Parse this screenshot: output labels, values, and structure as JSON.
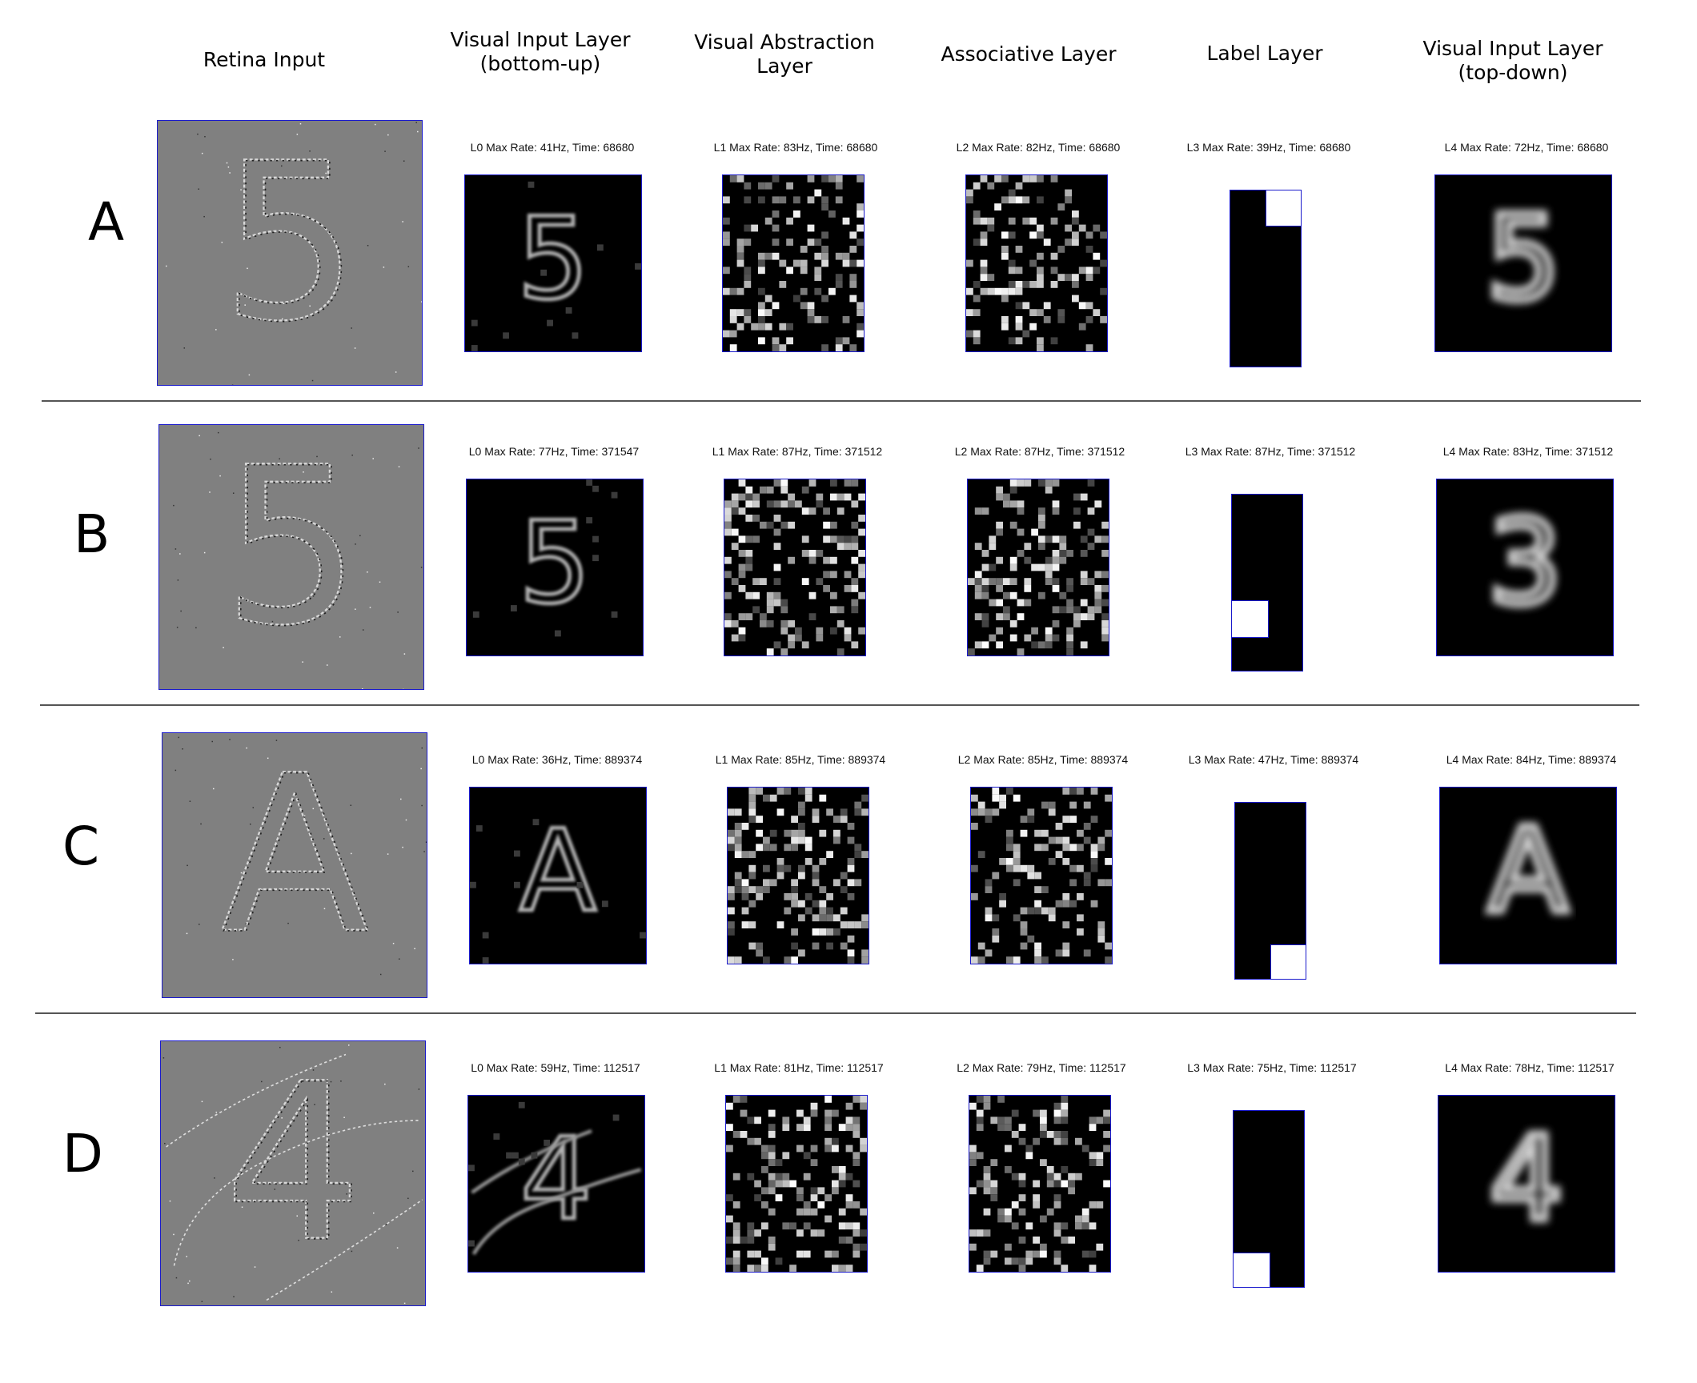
{
  "columns": {
    "retina": "Retina Input",
    "vis_bu": "Visual Input Layer\n(bottom-up)",
    "vis_abs": "Visual Abstraction\nLayer",
    "assoc": "Associative Layer",
    "label": "Label Layer",
    "vis_td": "Visual Input Layer\n(top-down)"
  },
  "rows": [
    {
      "letter": "A",
      "input_glyph": "5",
      "recon_glyph": "5",
      "label_cell": 1,
      "titles": {
        "l0": "L0  Max Rate: 41Hz, Time: 68680",
        "l1": "L1  Max Rate: 83Hz, Time: 68680",
        "l2": "L2  Max Rate: 82Hz, Time: 68680",
        "l3": "L3  Max Rate: 39Hz, Time: 68680",
        "l4": "L4  Max Rate: 72Hz, Time: 68680"
      }
    },
    {
      "letter": "B",
      "input_glyph": "5",
      "recon_glyph": "3",
      "label_cell": 6,
      "titles": {
        "l0": "L0  Max Rate: 77Hz, Time: 371547",
        "l1": "L1  Max Rate: 87Hz, Time: 371512",
        "l2": "L2  Max Rate: 87Hz, Time: 371512",
        "l3": "L3  Max Rate: 87Hz, Time: 371512",
        "l4": "L4  Max Rate: 83Hz, Time: 371512"
      }
    },
    {
      "letter": "C",
      "input_glyph": "A",
      "recon_glyph": "A",
      "label_cell": 9,
      "titles": {
        "l0": "L0  Max Rate: 36Hz, Time: 889374",
        "l1": "L1  Max Rate: 85Hz, Time: 889374",
        "l2": "L2  Max Rate: 85Hz, Time: 889374",
        "l3": "L3  Max Rate: 47Hz, Time: 889374",
        "l4": "L4  Max Rate: 84Hz, Time: 889374"
      }
    },
    {
      "letter": "D",
      "input_glyph": "4",
      "recon_glyph": "4",
      "label_cell": 8,
      "titles": {
        "l0": "L0  Max Rate: 59Hz, Time: 112517",
        "l1": "L1  Max Rate: 81Hz, Time: 112517",
        "l2": "L2  Max Rate: 79Hz, Time: 112517",
        "l3": "L3  Max Rate: 75Hz, Time: 112517",
        "l4": "L4  Max Rate: 78Hz, Time: 112517"
      }
    }
  ],
  "colors": {
    "frame": "#1a1acc",
    "retina_bg": "#808080",
    "layer_bg": "#000000",
    "separator": "#555555"
  }
}
